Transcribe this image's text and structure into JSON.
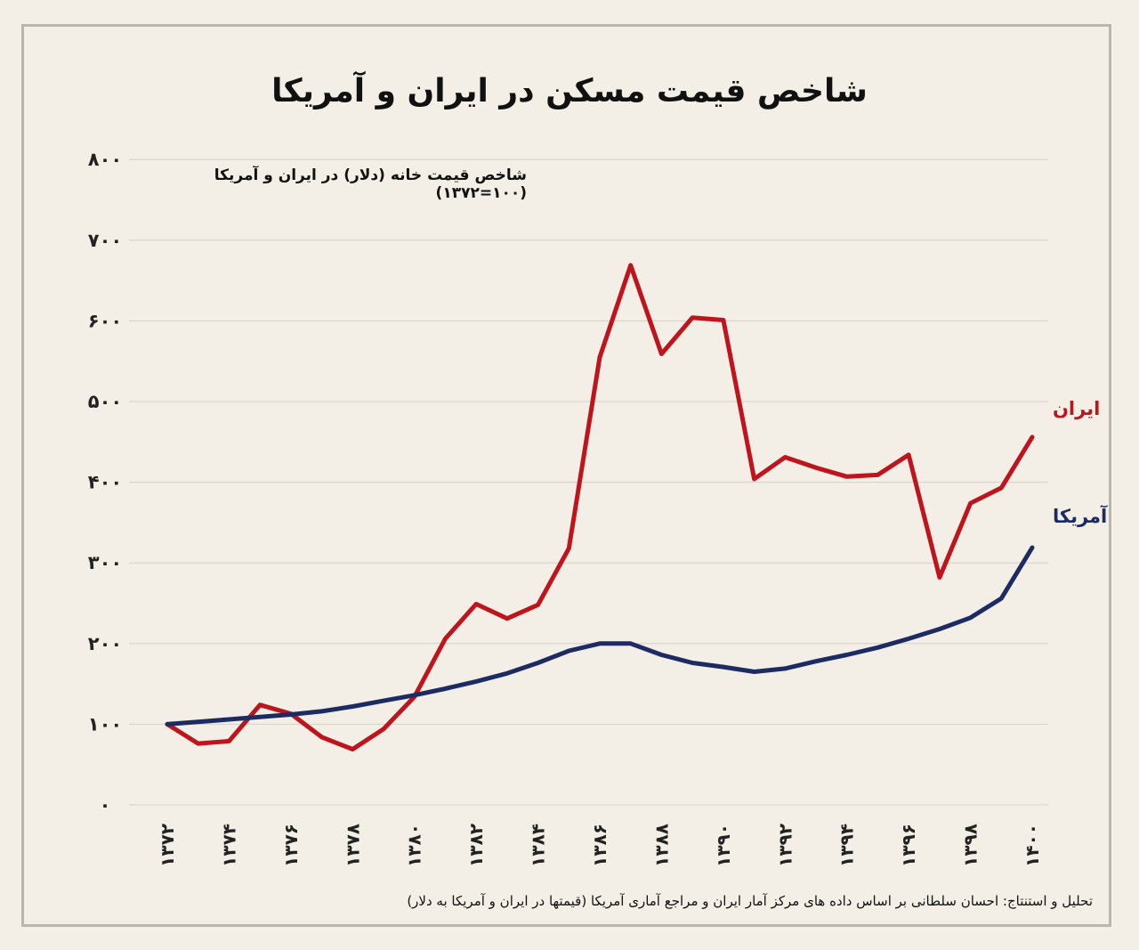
{
  "title": "شاخص قیمت مسکن در ایران و آمریکا",
  "subtitle": "شاخص قیمت خانه (دلار) در ایران و آمریکا (۱۰۰=۱۳۷۲)",
  "footer": "تحلیل و استنتاج: احسان سلطانی بر اساس داده های مرکز آمار ایران و مراجع آماری آمریکا (قیمتها در ایران و آمریکا به دلار)",
  "chart_data": {
    "type": "line",
    "title": "شاخص قیمت مسکن در ایران و آمریکا",
    "subtitle": "شاخص قیمت خانه (دلار) در ایران و آمریکا (۱۰۰=۱۳۷۲)",
    "x": [
      1372,
      1373,
      1374,
      1375,
      1376,
      1377,
      1378,
      1379,
      1380,
      1381,
      1382,
      1383,
      1384,
      1385,
      1386,
      1387,
      1388,
      1389,
      1390,
      1391,
      1392,
      1393,
      1394,
      1395,
      1396,
      1397,
      1398,
      1399,
      1400
    ],
    "x_tick_values": [
      1372,
      1374,
      1376,
      1378,
      1380,
      1382,
      1384,
      1386,
      1388,
      1390,
      1392,
      1394,
      1396,
      1398,
      1400
    ],
    "x_tick_labels": [
      "۱۳۷۲",
      "۱۳۷۴",
      "۱۳۷۶",
      "۱۳۷۸",
      "۱۳۸۰",
      "۱۳۸۲",
      "۱۳۸۴",
      "۱۳۸۶",
      "۱۳۸۸",
      "۱۳۹۰",
      "۱۳۹۲",
      "۱۳۹۴",
      "۱۳۹۶",
      "۱۳۹۸",
      "۱۴۰۰"
    ],
    "y_tick_values": [
      0,
      100,
      200,
      300,
      400,
      500,
      600,
      700,
      800
    ],
    "y_tick_labels": [
      "۰",
      "۱۰۰",
      "۲۰۰",
      "۳۰۰",
      "۴۰۰",
      "۵۰۰",
      "۶۰۰",
      "۷۰۰",
      "۸۰۰"
    ],
    "ylim": [
      0,
      800
    ],
    "grid": true,
    "series": [
      {
        "name": "ایران",
        "color": "#c0141c",
        "values": [
          100,
          76,
          79,
          124,
          113,
          84,
          69,
          94,
          134,
          206,
          249,
          231,
          248,
          318,
          555,
          669,
          559,
          604,
          601,
          404,
          431,
          418,
          407,
          409,
          434,
          282,
          374,
          393,
          456
        ]
      },
      {
        "name": "آمریکا",
        "color": "#1d2b63",
        "values": [
          100,
          103,
          106,
          109,
          112,
          116,
          122,
          129,
          136,
          144,
          153,
          163,
          176,
          191,
          200,
          200,
          186,
          176,
          171,
          165,
          169,
          178,
          186,
          195,
          206,
          218,
          232,
          256,
          319
        ]
      }
    ]
  }
}
